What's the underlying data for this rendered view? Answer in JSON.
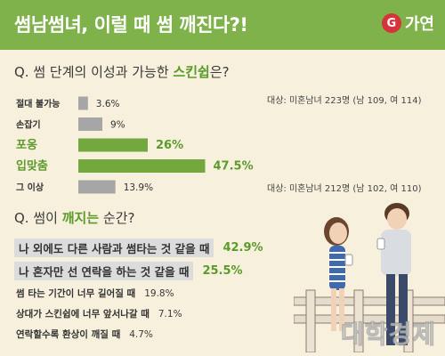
{
  "header": {
    "title": "썸남썸녀, 이럴 때 썸 깨진다?!",
    "logo_mark": "G",
    "logo_text": "가연"
  },
  "question1": {
    "prefix": "Q. 썸 단계의 이성과 가능한 ",
    "highlight": "스킨쉽",
    "suffix": "은?"
  },
  "samples": {
    "s1": "대상: 미혼남녀 223명 (남 109, 여 114)",
    "s2": "대상: 미혼남녀 212명 (남 102, 여 110)"
  },
  "colors": {
    "header": "#7fb24a",
    "bar_gray": "#a6a6a6",
    "bar_green": "#73a83e",
    "highlight_text": "#5d9a2c"
  },
  "chart_data": {
    "type": "bar",
    "orientation": "horizontal",
    "categories": [
      "절대 불가능",
      "손잡기",
      "포옹",
      "입맞춤",
      "그 이상"
    ],
    "values": [
      3.6,
      9,
      26,
      47.5,
      13.9
    ],
    "value_labels": [
      "3.6%",
      "9%",
      "26%",
      "47.5%",
      "13.9%"
    ],
    "highlighted": [
      false,
      false,
      true,
      true,
      false
    ],
    "xlim": [
      0,
      80
    ],
    "grid": false
  },
  "question2": {
    "prefix": "Q. 썸이 ",
    "highlight": "깨지는",
    "suffix": " 순간?"
  },
  "answers": [
    {
      "label": "나 외에도 다른 사람과 썸타는 것 같을 때",
      "value": "42.9%"
    },
    {
      "label": "나 혼자만 선 연락을 하는 것 같을 때",
      "value": "25.5%"
    },
    {
      "label": "썸 타는 기간이 너무 길어질 때",
      "value": "19.8%"
    },
    {
      "label": "상대가 스킨쉽에 너무 앞서나갈 때",
      "value": "7.1%"
    },
    {
      "label": "연락할수록 환상이 깨질 때",
      "value": "4.7%"
    }
  ],
  "watermark": "대학경제"
}
